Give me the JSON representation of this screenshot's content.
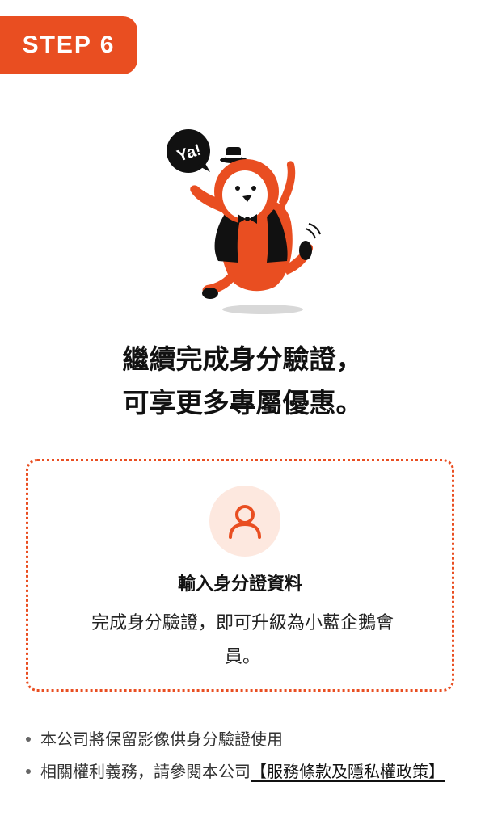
{
  "step_badge": {
    "label": "STEP 6",
    "color": "#e94e21"
  },
  "mascot": {
    "speech_bubble": "Ya!",
    "icon": "penguin-mascot-icon"
  },
  "headline": {
    "line1": "繼續完成身分驗證，",
    "line2": "可享更多專屬優惠。"
  },
  "card": {
    "icon": "user-icon",
    "title": "輸入身分證資料",
    "description": "完成身分驗證，即可升級為小藍企鵝會員。",
    "border_color": "#e94e21",
    "icon_bg": "#fde8df"
  },
  "notes": {
    "note1": "本公司將保留影像供身分驗證使用",
    "note2_prefix": "相關權利義務，請參閱本公司",
    "note2_link": "【服務條款及隱私權政策】"
  }
}
